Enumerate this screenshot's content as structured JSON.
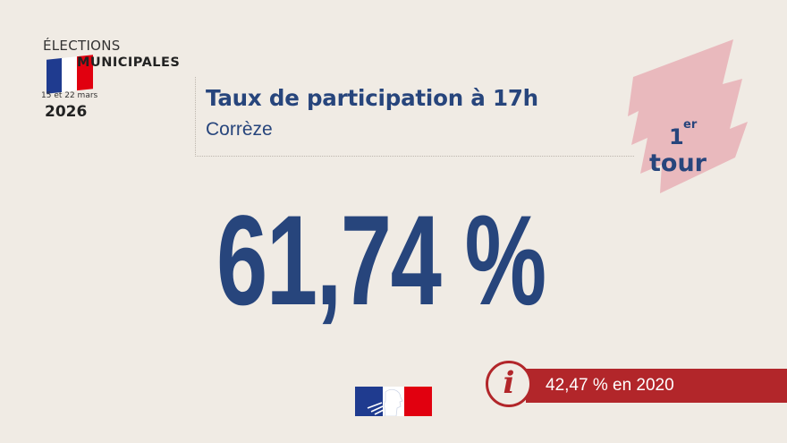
{
  "logo": {
    "line1": "ÉLECTIONS",
    "line2": "MUNICIPALES",
    "dates": "15 et 22 mars",
    "year": "2026",
    "flag_colors": [
      "#1f3b8f",
      "#ffffff",
      "#e1000f"
    ]
  },
  "header": {
    "title": "Taux de participation à 17h",
    "subtitle": "Corrèze"
  },
  "round_badge": {
    "number": "1",
    "superscript": "er",
    "word": "tour",
    "badge_color": "#e9b9bd"
  },
  "main": {
    "value": "61,74 %"
  },
  "comparison": {
    "icon": "info-icon",
    "text": "42,47 % en 2020",
    "bar_color": "#b2262a"
  },
  "footer": {
    "icon": "marianne-logo-icon"
  },
  "colors": {
    "primary_blue": "#27457c",
    "background": "#f0ebe4"
  }
}
